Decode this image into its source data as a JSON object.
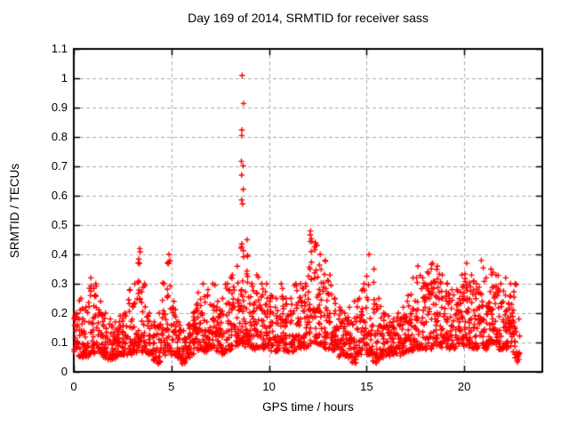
{
  "chart_data": {
    "type": "scatter",
    "title": "Day 169 of 2014, SRMTID for receiver sass",
    "xlabel": "GPS time / hours",
    "ylabel": "SRMTID / TECUs",
    "xlim": [
      0,
      24
    ],
    "ylim": [
      0,
      1.1
    ],
    "xticks": [
      0,
      5,
      10,
      15,
      20
    ],
    "xtick_labels": [
      "0",
      "5",
      "10",
      "15",
      "20"
    ],
    "yticks": [
      0,
      0.1,
      0.2,
      0.3,
      0.4,
      0.5,
      0.6,
      0.7,
      0.8,
      0.9,
      1.0,
      1.1
    ],
    "ytick_labels": [
      "0",
      "0.1",
      "0.2",
      "0.3",
      "0.4",
      "0.5",
      "0.6",
      "0.7",
      "0.8",
      "0.9",
      "1",
      "1.1"
    ],
    "grid": "dashed, both axes",
    "legend": "none",
    "marker": "plus",
    "marker_color": "#ff0000",
    "grid_color": "#aaaaaa",
    "axis_color": "#000000",
    "text_color": "#000000",
    "background": "#ffffff",
    "x_data_start": 0.0,
    "x_data_end": 22.85,
    "approx_point_count": 2070,
    "notable_peaks": [
      [
        8.6,
        1.01
      ],
      [
        12.1,
        0.48
      ],
      [
        8.75,
        0.45
      ],
      [
        3.35,
        0.42
      ],
      [
        15.1,
        0.4
      ],
      [
        4.85,
        0.4
      ],
      [
        20.8,
        0.38
      ]
    ],
    "envelope_bins": {
      "bin_width_hours": 0.25,
      "format": [
        "x_start",
        "y_min",
        "y_max",
        "n_points"
      ],
      "bins": [
        [
          0.0,
          0.07,
          0.2,
          22
        ],
        [
          0.25,
          0.05,
          0.25,
          22
        ],
        [
          0.5,
          0.05,
          0.22,
          22
        ],
        [
          0.75,
          0.06,
          0.32,
          24
        ],
        [
          1.0,
          0.06,
          0.3,
          24
        ],
        [
          1.25,
          0.06,
          0.24,
          22
        ],
        [
          1.5,
          0.05,
          0.2,
          22
        ],
        [
          1.75,
          0.04,
          0.18,
          22
        ],
        [
          2.0,
          0.05,
          0.17,
          22
        ],
        [
          2.25,
          0.06,
          0.19,
          22
        ],
        [
          2.5,
          0.06,
          0.2,
          22
        ],
        [
          2.75,
          0.06,
          0.28,
          22
        ],
        [
          3.0,
          0.07,
          0.3,
          22
        ],
        [
          3.25,
          0.08,
          0.42,
          26
        ],
        [
          3.5,
          0.07,
          0.3,
          22
        ],
        [
          3.75,
          0.06,
          0.2,
          22
        ],
        [
          4.0,
          0.04,
          0.17,
          22
        ],
        [
          4.25,
          0.03,
          0.2,
          22
        ],
        [
          4.5,
          0.06,
          0.3,
          22
        ],
        [
          4.75,
          0.07,
          0.4,
          24
        ],
        [
          5.0,
          0.06,
          0.24,
          22
        ],
        [
          5.25,
          0.05,
          0.17,
          22
        ],
        [
          5.5,
          0.03,
          0.14,
          22
        ],
        [
          5.75,
          0.05,
          0.16,
          22
        ],
        [
          6.0,
          0.06,
          0.2,
          22
        ],
        [
          6.25,
          0.07,
          0.27,
          23
        ],
        [
          6.5,
          0.07,
          0.3,
          23
        ],
        [
          6.75,
          0.07,
          0.28,
          22
        ],
        [
          7.0,
          0.08,
          0.3,
          23
        ],
        [
          7.25,
          0.07,
          0.24,
          22
        ],
        [
          7.5,
          0.06,
          0.25,
          22
        ],
        [
          7.75,
          0.07,
          0.3,
          22
        ],
        [
          8.0,
          0.08,
          0.33,
          23
        ],
        [
          8.25,
          0.09,
          0.36,
          23
        ],
        [
          8.5,
          0.1,
          1.01,
          42
        ],
        [
          8.75,
          0.09,
          0.45,
          25
        ],
        [
          9.0,
          0.08,
          0.3,
          23
        ],
        [
          9.25,
          0.08,
          0.33,
          22
        ],
        [
          9.5,
          0.08,
          0.3,
          22
        ],
        [
          9.75,
          0.08,
          0.3,
          23
        ],
        [
          10.0,
          0.07,
          0.26,
          22
        ],
        [
          10.25,
          0.07,
          0.25,
          22
        ],
        [
          10.5,
          0.08,
          0.3,
          22
        ],
        [
          10.75,
          0.07,
          0.25,
          22
        ],
        [
          11.0,
          0.07,
          0.25,
          22
        ],
        [
          11.25,
          0.07,
          0.3,
          22
        ],
        [
          11.5,
          0.08,
          0.3,
          23
        ],
        [
          11.75,
          0.08,
          0.3,
          23
        ],
        [
          12.0,
          0.09,
          0.48,
          27
        ],
        [
          12.25,
          0.1,
          0.44,
          26
        ],
        [
          12.5,
          0.09,
          0.4,
          25
        ],
        [
          12.75,
          0.08,
          0.38,
          24
        ],
        [
          13.0,
          0.08,
          0.33,
          22
        ],
        [
          13.25,
          0.07,
          0.25,
          22
        ],
        [
          13.5,
          0.05,
          0.22,
          22
        ],
        [
          13.75,
          0.05,
          0.2,
          22
        ],
        [
          14.0,
          0.04,
          0.22,
          22
        ],
        [
          14.25,
          0.03,
          0.24,
          22
        ],
        [
          14.5,
          0.06,
          0.25,
          22
        ],
        [
          14.75,
          0.07,
          0.3,
          22
        ],
        [
          15.0,
          0.06,
          0.4,
          25
        ],
        [
          15.25,
          0.03,
          0.35,
          24
        ],
        [
          15.5,
          0.04,
          0.25,
          22
        ],
        [
          15.75,
          0.05,
          0.2,
          22
        ],
        [
          16.0,
          0.05,
          0.19,
          22
        ],
        [
          16.25,
          0.06,
          0.18,
          22
        ],
        [
          16.5,
          0.06,
          0.2,
          22
        ],
        [
          16.75,
          0.06,
          0.22,
          22
        ],
        [
          17.0,
          0.07,
          0.26,
          22
        ],
        [
          17.25,
          0.07,
          0.32,
          23
        ],
        [
          17.5,
          0.08,
          0.36,
          24
        ],
        [
          17.75,
          0.08,
          0.32,
          23
        ],
        [
          18.0,
          0.08,
          0.34,
          24
        ],
        [
          18.25,
          0.08,
          0.37,
          25
        ],
        [
          18.5,
          0.09,
          0.36,
          25
        ],
        [
          18.75,
          0.08,
          0.33,
          24
        ],
        [
          19.0,
          0.08,
          0.3,
          24
        ],
        [
          19.25,
          0.08,
          0.28,
          23
        ],
        [
          19.5,
          0.08,
          0.28,
          23
        ],
        [
          19.75,
          0.09,
          0.33,
          24
        ],
        [
          20.0,
          0.09,
          0.37,
          25
        ],
        [
          20.25,
          0.08,
          0.33,
          24
        ],
        [
          20.5,
          0.08,
          0.3,
          24
        ],
        [
          20.75,
          0.09,
          0.38,
          24
        ],
        [
          21.0,
          0.08,
          0.32,
          24
        ],
        [
          21.25,
          0.09,
          0.35,
          25
        ],
        [
          21.5,
          0.09,
          0.33,
          25
        ],
        [
          21.75,
          0.08,
          0.3,
          24
        ],
        [
          22.0,
          0.08,
          0.32,
          24
        ],
        [
          22.25,
          0.08,
          0.3,
          24
        ],
        [
          22.5,
          0.03,
          0.3,
          22
        ],
        [
          22.75,
          0.04,
          0.18,
          8
        ]
      ]
    }
  }
}
